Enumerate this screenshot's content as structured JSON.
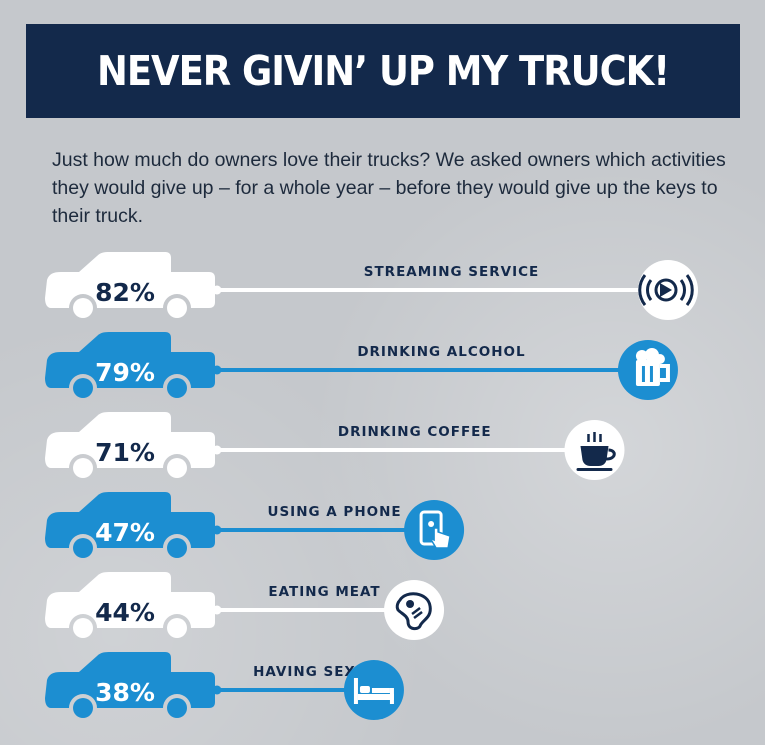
{
  "title": "NEVER GIVIN’ UP MY TRUCK!",
  "intro": "Just how much do owners love their trucks? We asked owners which activities they would give up – for a whole year – before they would give up the keys to their truck.",
  "colors": {
    "navy": "#13294b",
    "blue": "#1c8ed1",
    "white": "#ffffff"
  },
  "chart_data": {
    "type": "bar",
    "title": "NEVER GIVIN’ UP MY TRUCK!",
    "categories": [
      "STREAMING SERVICE",
      "DRINKING ALCOHOL",
      "DRINKING COFFEE",
      "USING A PHONE",
      "EATING MEAT",
      "HAVING SEX"
    ],
    "values": [
      82,
      79,
      71,
      47,
      44,
      38
    ],
    "value_labels": [
      "82%",
      "79%",
      "71%",
      "47%",
      "44%",
      "38%"
    ],
    "icons": [
      "streaming-icon",
      "beer-mug-icon",
      "coffee-cup-icon",
      "phone-tap-icon",
      "steak-icon",
      "bed-icon"
    ],
    "bar_colors": [
      "#ffffff",
      "#1c8ed1",
      "#ffffff",
      "#1c8ed1",
      "#ffffff",
      "#1c8ed1"
    ]
  }
}
